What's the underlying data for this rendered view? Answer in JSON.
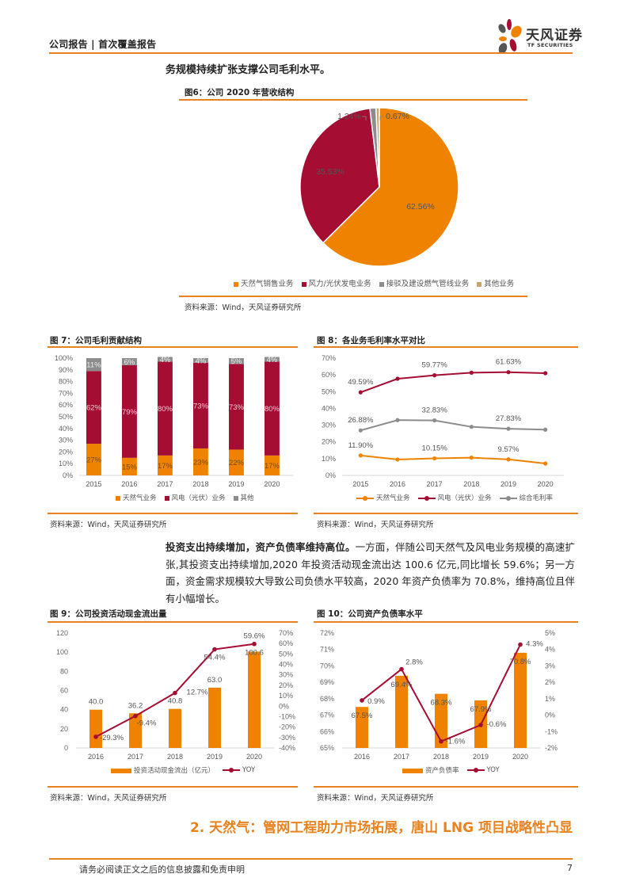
{
  "header": {
    "report_type": "公司报告 | 首次覆盖报告",
    "logo_cn": "天风证券",
    "logo_en": "TF SECURITIES"
  },
  "lead_text": "务规模持续扩张支撑公司毛利水平。",
  "colors": {
    "accent": "#e8821e",
    "orange": "#ef8300",
    "crimson": "#a50d33",
    "gray": "#8c8c8c",
    "tan": "#c9a46b"
  },
  "figures": {
    "fig6": {
      "title": "图6：公司 2020 年营收结构",
      "source": "资料来源：Wind，天风证券研究所"
    },
    "fig7": {
      "title": "图 7：公司毛利贡献结构",
      "source": "资料来源：Wind，天风证券研究所"
    },
    "fig8": {
      "title": "图 8：各业务毛利率水平对比",
      "source": "资料来源：Wind，天风证券研究所"
    },
    "fig9": {
      "title": "图 9：公司投资活动现金流出量",
      "source": "资料来源：Wind，天风证券研究所"
    },
    "fig10": {
      "title": "图 10：公司资产负债率水平",
      "source": "资料来源：Wind，天风证券研究所"
    }
  },
  "paragraph": {
    "bold": "投资支出持续增加，资产负债率维持高位。",
    "text": "一方面，伴随公司天然气及风电业务规模的高速扩张,其投资支出持续增加,2020 年投资活动现金流出达 100.6 亿元,同比增长 59.6%；另一方面，资金需求规模较大导致公司负债水平较高，2020 年资产负债率为 70.8%，维持高位且伴有小幅增长。"
  },
  "section_title": "2. 天然气：管网工程助力市场拓展，唐山 LNG 项目战略性凸显",
  "footer": {
    "disclaimer": "请务必阅读正文之后的信息披露和免责申明",
    "page": "7"
  },
  "chart_data": [
    {
      "id": "fig6",
      "type": "pie",
      "title": "图6：公司 2020 年营收结构",
      "categories": [
        "天然气销售业务",
        "风力/光伏发电业务",
        "接驳及建设燃气管线业务",
        "其他业务"
      ],
      "values": [
        62.56,
        35.53,
        1.24,
        0.67
      ],
      "labels": [
        "62.56%",
        "35.53%",
        "1.24%",
        "0.67%"
      ],
      "colors": [
        "#ef8300",
        "#a50d33",
        "#8c8c8c",
        "#c9a46b"
      ],
      "legend_position": "bottom"
    },
    {
      "id": "fig7",
      "type": "bar",
      "stacked": true,
      "title": "图 7：公司毛利贡献结构",
      "categories": [
        "2015",
        "2016",
        "2017",
        "2018",
        "2019",
        "2020"
      ],
      "series": [
        {
          "name": "天然气业务",
          "values": [
            27,
            15,
            17,
            23,
            22,
            17
          ],
          "color": "#ef8300"
        },
        {
          "name": "风电（光伏）业务",
          "values": [
            62,
            79,
            80,
            73,
            73,
            80
          ],
          "color": "#a50d33"
        },
        {
          "name": "其他",
          "values": [
            11,
            6,
            4,
            4,
            5,
            4
          ],
          "color": "#8c8c8c"
        }
      ],
      "yticks": [
        "0%",
        "10%",
        "20%",
        "30%",
        "40%",
        "50%",
        "60%",
        "70%",
        "80%",
        "90%",
        "100%"
      ],
      "ylim": [
        0,
        100
      ],
      "legend_position": "bottom"
    },
    {
      "id": "fig8",
      "type": "line",
      "title": "图 8：各业务毛利率水平对比",
      "categories": [
        "2015",
        "2016",
        "2017",
        "2018",
        "2019",
        "2020"
      ],
      "series": [
        {
          "name": "天然气业务",
          "values": [
            11.9,
            9.5,
            10.15,
            10.6,
            9.57,
            7.1
          ],
          "labels": [
            "11.90%",
            "",
            "10.15%",
            "",
            "9.57%",
            ""
          ],
          "color": "#ef8300"
        },
        {
          "name": "风电（光伏）业务",
          "values": [
            49.59,
            57.7,
            59.77,
            61.3,
            61.63,
            61.0
          ],
          "labels": [
            "49.59%",
            "",
            "59.77%",
            "",
            "61.63%",
            ""
          ],
          "color": "#a50d33"
        },
        {
          "name": "综合毛利率",
          "values": [
            26.88,
            33.0,
            32.83,
            29.0,
            27.83,
            27.3
          ],
          "labels": [
            "26.88%",
            "",
            "32.83%",
            "",
            "27.83%",
            ""
          ],
          "color": "#8c8c8c"
        }
      ],
      "yticks": [
        "0%",
        "10%",
        "20%",
        "30%",
        "40%",
        "50%",
        "60%",
        "70%"
      ],
      "ylim": [
        0,
        70
      ],
      "legend_position": "bottom"
    },
    {
      "id": "fig9",
      "type": "bar",
      "title": "图 9：公司投资活动现金流出量",
      "categories": [
        "2016",
        "2017",
        "2018",
        "2019",
        "2020"
      ],
      "series": [
        {
          "name": "投资活动现金流出（亿元）",
          "type": "bar",
          "axis": "left",
          "values": [
            40.0,
            36.2,
            40.8,
            63.0,
            100.6
          ],
          "labels": [
            "40.0",
            "36.2",
            "40.8",
            "63.0",
            "100.6"
          ],
          "color": "#ef8300"
        },
        {
          "name": "YOY",
          "type": "line",
          "axis": "right",
          "values": [
            -29.3,
            -9.4,
            12.7,
            54.4,
            59.6
          ],
          "labels": [
            "-29.3%",
            "-9.4%",
            "12.7%",
            "54.4%",
            "59.6%"
          ],
          "color": "#a50d33"
        }
      ],
      "yticks_left": [
        "0",
        "20",
        "40",
        "60",
        "80",
        "100",
        "120"
      ],
      "ylim_left": [
        0,
        120
      ],
      "yticks_right": [
        "-40%",
        "-30%",
        "-20%",
        "-10%",
        "0%",
        "10%",
        "20%",
        "30%",
        "40%",
        "50%",
        "60%",
        "70%"
      ],
      "ylim_right": [
        -40,
        70
      ],
      "legend_position": "bottom"
    },
    {
      "id": "fig10",
      "type": "bar",
      "title": "图 10：公司资产负债率水平",
      "categories": [
        "2016",
        "2017",
        "2018",
        "2019",
        "2020"
      ],
      "series": [
        {
          "name": "资产负债率",
          "type": "bar",
          "axis": "left",
          "values": [
            67.5,
            69.4,
            68.3,
            67.9,
            70.8
          ],
          "labels": [
            "67.5%",
            "69.4%",
            "68.3%",
            "67.9%",
            "70.8%"
          ],
          "color": "#ef8300"
        },
        {
          "name": "YOY",
          "type": "line",
          "axis": "right",
          "values": [
            0.9,
            2.8,
            -1.6,
            -0.6,
            4.3
          ],
          "labels": [
            "0.9%",
            "2.8%",
            "-1.6%",
            "-0.6%",
            "4.3%"
          ],
          "color": "#a50d33"
        }
      ],
      "yticks_left": [
        "65%",
        "66%",
        "67%",
        "68%",
        "69%",
        "70%",
        "71%",
        "72%"
      ],
      "ylim_left": [
        65,
        72
      ],
      "yticks_right": [
        "-2%",
        "-1%",
        "0%",
        "1%",
        "2%",
        "3%",
        "4%",
        "5%"
      ],
      "ylim_right": [
        -2,
        5
      ],
      "legend_position": "bottom"
    }
  ]
}
